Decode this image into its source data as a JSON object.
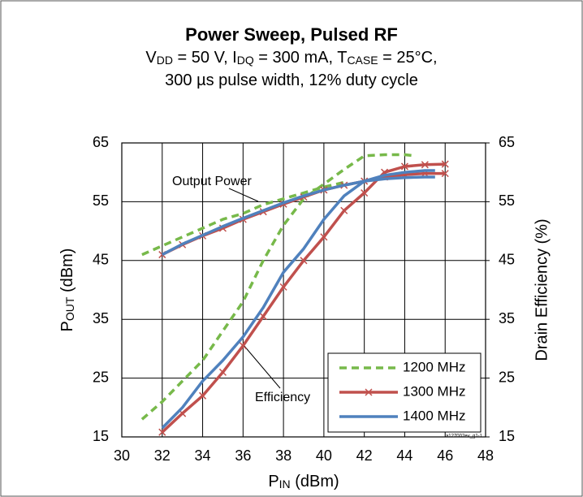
{
  "chart_data": {
    "type": "line",
    "title": "Power Sweep, Pulsed RF",
    "subtitle": [
      [
        {
          "text": "V"
        },
        {
          "text": "DD",
          "sub": true
        },
        {
          "text": " = 50 V, I"
        },
        {
          "text": "DQ",
          "sub": true
        },
        {
          "text": " = 300 mA, T"
        },
        {
          "text": "CASE",
          "sub": true
        },
        {
          "text": " = 25°C,"
        }
      ],
      [
        {
          "text": "300 µs pulse width, 12% duty cycle"
        }
      ]
    ],
    "xlabel": [
      {
        "text": "P"
      },
      {
        "text": "IN",
        "sub": true
      },
      {
        "text": " (dBm)"
      }
    ],
    "ylabel": [
      {
        "text": "P"
      },
      {
        "text": "OUT",
        "sub": true
      },
      {
        "text": " (dBm)"
      }
    ],
    "y2label": "Drain Efficiency (%)",
    "annotations": [
      "Output Power",
      "Efficiency",
      "a127002ev_g1-1"
    ],
    "xlim": [
      30,
      48
    ],
    "xticks": [
      30,
      32,
      34,
      36,
      38,
      40,
      42,
      44,
      46,
      48
    ],
    "ylim": [
      15,
      65
    ],
    "yticks": [
      15,
      25,
      35,
      45,
      55,
      65
    ],
    "y2lim": [
      15,
      65
    ],
    "y2ticks": [
      15,
      25,
      35,
      45,
      55,
      65
    ],
    "grid": true,
    "legend": "lower right",
    "series": [
      {
        "name": "1200 MHz",
        "color": "#77b94a",
        "dash": true,
        "marker": false,
        "x": [
          31,
          32,
          33,
          34,
          35,
          36,
          37,
          38,
          39,
          40,
          41
        ],
        "pout": [
          46,
          47.5,
          49,
          50.5,
          52,
          53,
          54.5,
          55.5,
          56.5,
          57.5,
          58.3
        ],
        "eff_x": [
          31,
          32,
          33,
          34,
          35,
          36,
          37,
          38,
          39,
          40,
          41,
          42,
          43,
          44,
          44.5
        ],
        "efficiency": [
          18,
          21,
          24.5,
          28,
          33,
          38,
          45,
          51,
          55.5,
          58,
          60.5,
          62.8,
          63,
          63,
          62.8
        ]
      },
      {
        "name": "1300 MHz",
        "color": "#c0504d",
        "dash": false,
        "marker": true,
        "x": [
          32,
          33,
          34,
          35,
          36,
          37,
          38,
          39,
          40,
          41,
          42,
          43,
          44,
          45,
          46
        ],
        "pout": [
          46,
          47.7,
          49.2,
          50.5,
          52,
          53.3,
          54.6,
          55.8,
          57,
          57.8,
          58.5,
          59.2,
          59.6,
          59.8,
          59.8
        ],
        "eff_x": [
          32,
          33,
          34,
          35,
          36,
          37,
          38,
          39,
          40,
          41,
          42,
          43,
          44,
          45,
          46
        ],
        "efficiency": [
          15.8,
          19,
          22,
          26,
          30.5,
          35.5,
          40.5,
          45,
          49,
          53.5,
          56.5,
          60,
          61,
          61.3,
          61.4
        ]
      },
      {
        "name": "1400 MHz",
        "color": "#4f81bd",
        "dash": false,
        "marker": false,
        "x": [
          32,
          33,
          34,
          35,
          36,
          37,
          38,
          39,
          40,
          41,
          42,
          43,
          44,
          45,
          45.5
        ],
        "pout": [
          46,
          47.8,
          49.3,
          50.8,
          52.2,
          53.5,
          54.8,
          56,
          57,
          57.8,
          58.5,
          58.9,
          59.1,
          59.2,
          59.2
        ],
        "eff_x": [
          32,
          33,
          34,
          35,
          36,
          37,
          38,
          39,
          40,
          41,
          42,
          43,
          44,
          45,
          45.5
        ],
        "efficiency": [
          16.5,
          20,
          24.5,
          28,
          32,
          37,
          43,
          47,
          52,
          56,
          58.5,
          59.5,
          60,
          60.3,
          60.3
        ]
      }
    ]
  }
}
